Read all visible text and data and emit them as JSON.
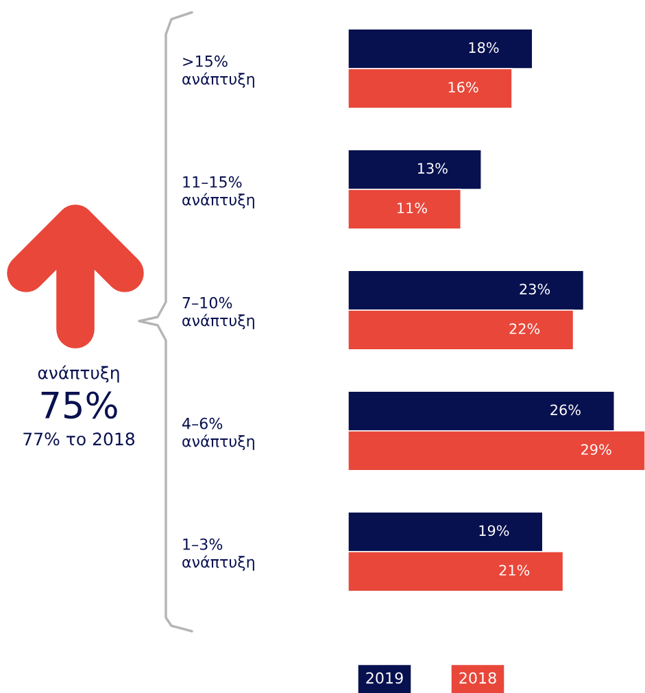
{
  "chart_data": {
    "type": "bar",
    "orientation": "horizontal",
    "categories": [
      ">15%\nανάπτυξη",
      "11–15%\nανάπτυξη",
      "7–10%\nανάπτυξη",
      "4–6%\nανάπτυξη",
      "1–3%\nανάπτυξη"
    ],
    "series": [
      {
        "name": "2019",
        "color": "#08114f",
        "values": [
          18,
          13,
          23,
          26,
          19
        ],
        "value_labels": [
          "18%",
          "13%",
          "23%",
          "26%",
          "19%"
        ]
      },
      {
        "name": "2018",
        "color": "#e8473a",
        "values": [
          16,
          11,
          22,
          29,
          21
        ],
        "value_labels": [
          "16%",
          "11%",
          "22%",
          "29%",
          "21%"
        ]
      }
    ],
    "annotations": [
      "ανάπτυξη",
      "75%",
      "77% το 2018"
    ],
    "legend": "bottom",
    "grid": false
  }
}
